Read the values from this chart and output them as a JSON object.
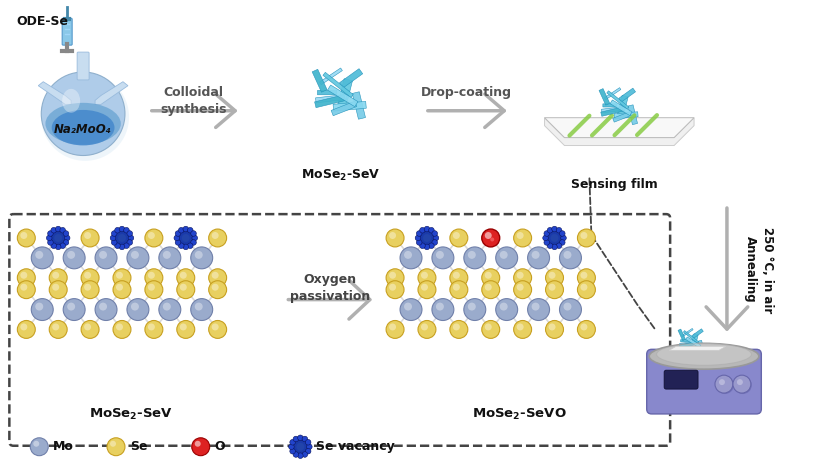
{
  "bg_color": "#ffffff",
  "top_arrow_color": "#aaaaaa",
  "arrow_text1_line1": "Colloidal",
  "arrow_text1_line2": "synthesis",
  "arrow_text2": "Drop-coating",
  "flask_label": "Na₂MoO₄",
  "ode_se_label": "ODE-Se",
  "crystal_label_top": "MoSe₂-SeV",
  "film_label": "Sensing film",
  "bottom_left_label": "MoSe₂-SeV",
  "bottom_right_label": "MoSe₂-SeVO",
  "oxygen_pass_line1": "Oxygen",
  "oxygen_pass_line2": "passivation",
  "anneal_text1": "Annealing",
  "anneal_text2": "250 °C, in air",
  "mo_color": "#9aabcc",
  "se_color": "#e8d060",
  "o_color": "#dd2222",
  "vacancy_color": "#1a3aaa",
  "legend_mo": "Mo",
  "legend_se": "Se",
  "legend_o": "O",
  "legend_vacancy": "Se vacancy",
  "dashed_box_color": "#444444",
  "bond_color": "#d0d0d0",
  "flask_body_color": "#a8c8e8",
  "flask_neck_color": "#c8ddf0",
  "flask_liquid_color": "#5599cc"
}
